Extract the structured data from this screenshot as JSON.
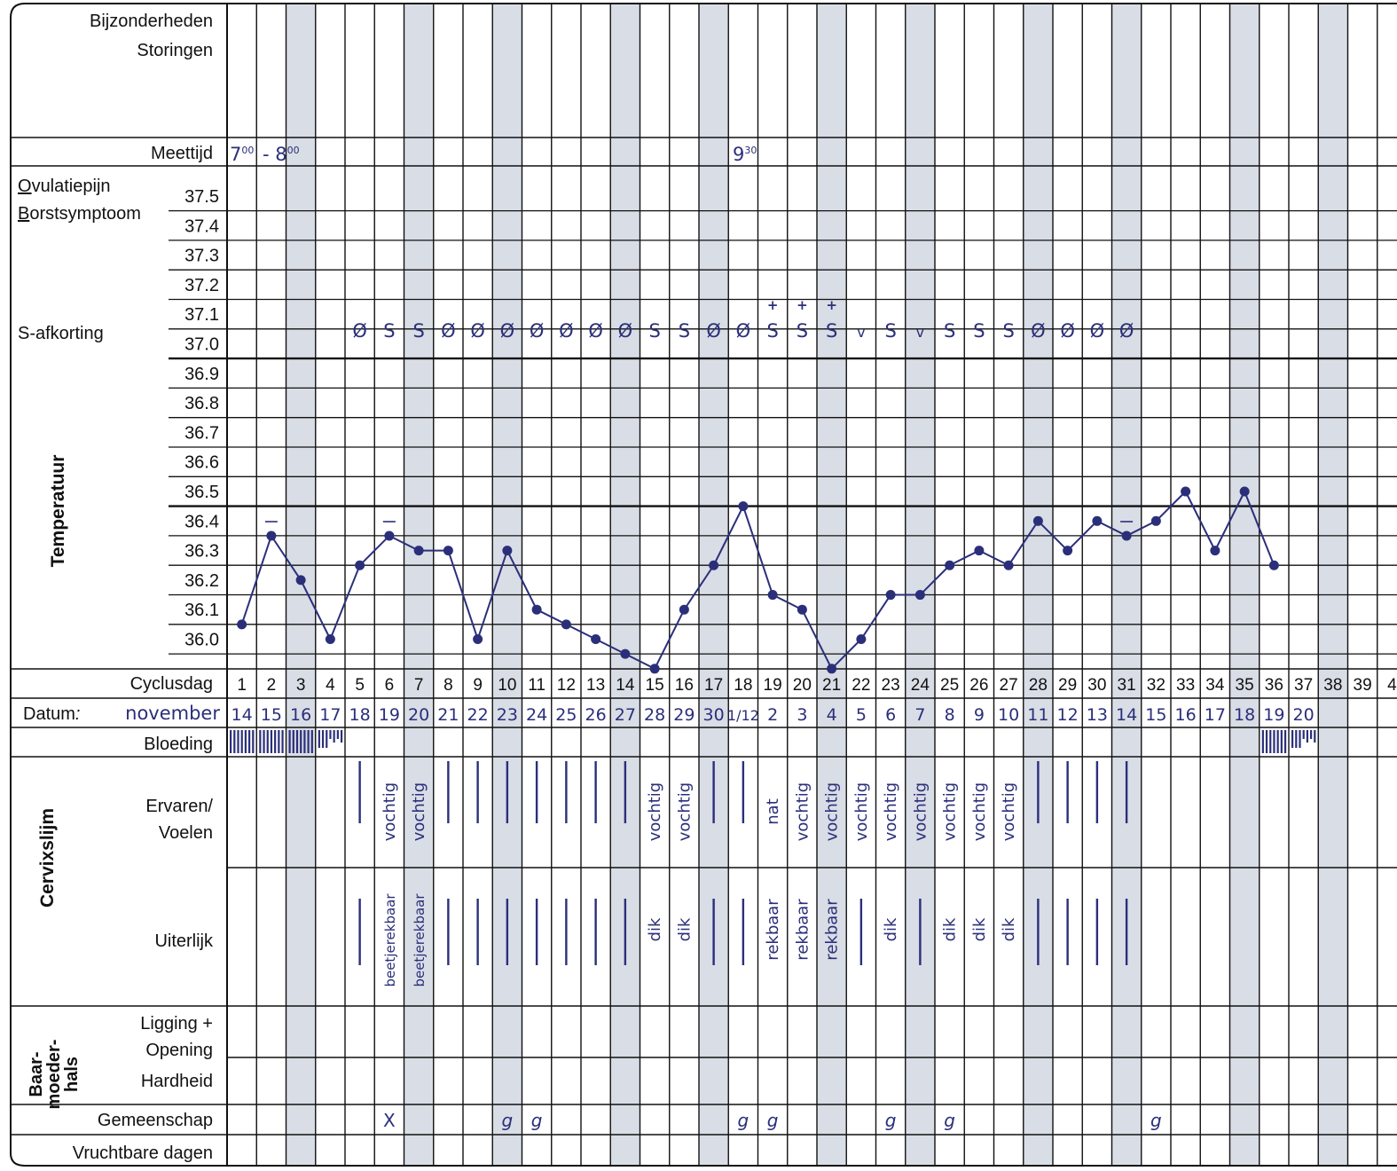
{
  "labels": {
    "bijzonderheden": "Bijzonderheden",
    "storingen": "Storingen",
    "meettijd": "Meettijd",
    "ovulatiepijn_first": "O",
    "ovulatiepijn_rest": "vulatiepijn",
    "borstsymptoom_first": "B",
    "borstsymptoom_rest": "orstsymptoom",
    "s_afkorting": "S-afkorting",
    "temperatuur": "Temperatuur",
    "cyclusdag": "Cyclusdag",
    "datum": "Datum",
    "datum_colon": ":",
    "maand": "november",
    "bloeding": "Bloeding",
    "cervixslijm": "Cervixslijm",
    "ervaren": "Ervaren/",
    "voelen": "Voelen",
    "uiterlijk": "Uiterlijk",
    "baarmoederhals_1": "Baar-",
    "baarmoederhals_2": "moeder-",
    "baarmoederhals_3": "hals",
    "ligging": "Ligging +",
    "opening": "Opening",
    "hardheid": "Hardheid",
    "gemeenschap": "Gemeenschap",
    "vruchtbare_dagen": "Vruchtbare dagen"
  },
  "meettijd": {
    "start_hour": "7",
    "start_min": "00",
    "dash": "- ",
    "end_hour": "8",
    "end_min": "00",
    "later_hour": "9",
    "later_min": "30"
  },
  "colors": {
    "ink": "#2b2f7a",
    "shade": "#d9dde5",
    "grid": "#111111"
  },
  "chart_data": {
    "type": "line",
    "ylabel": "Temperatuur",
    "ylim": [
      36.0,
      37.5
    ],
    "y_ticks": [
      "36.0",
      "36.1",
      "36.2",
      "36.3",
      "36.4",
      "36.5",
      "36.6",
      "36.7",
      "36.8",
      "36.9",
      "37.0",
      "37.1",
      "37.2",
      "37.3",
      "37.4",
      "37.5"
    ],
    "cycle_days": [
      "1",
      "2",
      "3",
      "4",
      "5",
      "6",
      "7",
      "8",
      "9",
      "10",
      "11",
      "12",
      "13",
      "14",
      "15",
      "16",
      "17",
      "18",
      "19",
      "20",
      "21",
      "22",
      "23",
      "24",
      "25",
      "26",
      "27",
      "28",
      "29",
      "30",
      "31",
      "32",
      "33",
      "34",
      "35",
      "36",
      "37",
      "38",
      "39",
      "4"
    ],
    "dates": [
      "14",
      "15",
      "16",
      "17",
      "18",
      "19",
      "20",
      "21",
      "22",
      "23",
      "24",
      "25",
      "26",
      "27",
      "28",
      "29",
      "30",
      "1/12",
      "2",
      "3",
      "4",
      "5",
      "6",
      "7",
      "8",
      "9",
      "10",
      "11",
      "12",
      "13",
      "14",
      "15",
      "16",
      "17",
      "18",
      "19",
      "20",
      "",
      "",
      ""
    ],
    "shaded_days": [
      3,
      7,
      10,
      14,
      17,
      21,
      24,
      28,
      31,
      35,
      38
    ],
    "temperatures": [
      36.05,
      36.35,
      36.2,
      36.0,
      36.25,
      36.35,
      36.3,
      36.3,
      36.0,
      36.3,
      36.1,
      36.05,
      36.0,
      35.95,
      35.9,
      36.1,
      36.25,
      36.45,
      36.15,
      36.1,
      35.9,
      36.0,
      36.15,
      36.15,
      36.25,
      36.3,
      36.25,
      36.4,
      36.3,
      36.4,
      36.35,
      36.4,
      36.5,
      36.3,
      36.5,
      36.25
    ],
    "s_afkorting": [
      "",
      "",
      "",
      "",
      "Ø",
      "S",
      "S",
      "Ø",
      "Ø",
      "Ø",
      "Ø",
      "Ø",
      "Ø",
      "Ø",
      "S",
      "S",
      "Ø",
      "Ø",
      "S",
      "S",
      "S",
      "v",
      "S",
      "v",
      "S",
      "S",
      "S",
      "Ø",
      "Ø",
      "Ø",
      "Ø",
      "",
      "",
      "",
      "",
      "",
      "",
      "",
      "",
      ""
    ],
    "plus_marks": [
      "",
      "",
      "",
      "",
      "",
      "",
      "",
      "",
      "",
      "",
      "",
      "",
      "",
      "",
      "",
      "",
      "",
      "",
      "+",
      "+",
      "+",
      "",
      "",
      "",
      "",
      "",
      "",
      "",
      "",
      "",
      "",
      "",
      "",
      "",
      "",
      "",
      "",
      "",
      "",
      ""
    ],
    "dash_marks_days": [
      2,
      6,
      31
    ],
    "bleeding": [
      4,
      4,
      4,
      2,
      0,
      0,
      0,
      0,
      0,
      0,
      0,
      0,
      0,
      0,
      0,
      0,
      0,
      0,
      0,
      0,
      0,
      0,
      0,
      0,
      0,
      0,
      0,
      0,
      0,
      0,
      0,
      0,
      0,
      0,
      0,
      4,
      2,
      0,
      0,
      0
    ],
    "ervaren": [
      "",
      "",
      "",
      "",
      "|",
      "vochtig",
      "vochtig",
      "|",
      "|",
      "|",
      "|",
      "|",
      "|",
      "|",
      "vochtig",
      "vochtig",
      "|",
      "|",
      "nat",
      "vochtig",
      "vochtig",
      "vochtig",
      "vochtig",
      "vochtig",
      "vochtig",
      "vochtig",
      "vochtig",
      "|",
      "|",
      "|",
      "|",
      "",
      "",
      "",
      "",
      "",
      "",
      "",
      "",
      ""
    ],
    "uiterlijk": [
      "",
      "",
      "",
      "",
      "|",
      "beetjerekbaar",
      "beetjerekbaar",
      "|",
      "|",
      "|",
      "|",
      "|",
      "|",
      "|",
      "dik",
      "dik",
      "|",
      "|",
      "rekbaar",
      "rekbaar",
      "rekbaar",
      "|",
      "dik",
      "|",
      "dik",
      "dik",
      "dik",
      "|",
      "|",
      "|",
      "|",
      "",
      "",
      "",
      "",
      "",
      "",
      "",
      "",
      ""
    ],
    "gemeenschap": [
      "",
      "",
      "",
      "",
      "",
      "X",
      "",
      "",
      "",
      "g",
      "g",
      "",
      "",
      "",
      "",
      "",
      "",
      "g",
      "g",
      "",
      "",
      "",
      "g",
      "",
      "g",
      "",
      "",
      "",
      "",
      "",
      "",
      "g",
      "",
      "",
      "",
      "",
      "",
      "",
      "",
      ""
    ]
  }
}
